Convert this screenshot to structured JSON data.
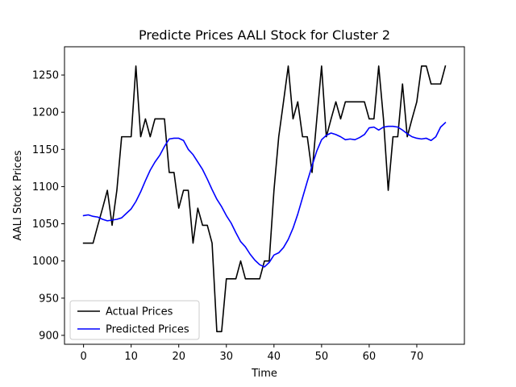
{
  "chart_data": {
    "type": "line",
    "title": "Predicte Prices AALI Stock for Cluster 2",
    "xlabel": "Time",
    "ylabel": "AALI Stock Prices",
    "xlim": [
      -4,
      80
    ],
    "ylim": [
      888,
      1288
    ],
    "xticks": [
      0,
      10,
      20,
      30,
      40,
      50,
      60,
      70
    ],
    "yticks": [
      900,
      950,
      1000,
      1050,
      1100,
      1150,
      1200,
      1250
    ],
    "grid": false,
    "legend_position": "lower-left",
    "x": [
      0,
      1,
      2,
      3,
      4,
      5,
      6,
      7,
      8,
      9,
      10,
      11,
      12,
      13,
      14,
      15,
      16,
      17,
      18,
      19,
      20,
      21,
      22,
      23,
      24,
      25,
      26,
      27,
      28,
      29,
      30,
      31,
      32,
      33,
      34,
      35,
      36,
      37,
      38,
      39,
      40,
      41,
      42,
      43,
      44,
      45,
      46,
      47,
      48,
      49,
      50,
      51,
      52,
      53,
      54,
      55,
      56,
      57,
      58,
      59,
      60,
      61,
      62,
      63,
      64,
      65,
      66,
      67,
      68,
      69,
      70,
      71,
      72,
      73,
      74,
      75,
      76
    ],
    "series": [
      {
        "name": "Actual Prices",
        "color": "#000000",
        "values": [
          1024,
          1024,
          1024,
          1048,
          1071,
          1095,
          1048,
          1095,
          1167,
          1167,
          1167,
          1262,
          1167,
          1191,
          1167,
          1191,
          1191,
          1191,
          1119,
          1119,
          1071,
          1095,
          1095,
          1024,
          1071,
          1048,
          1048,
          1024,
          905,
          905,
          976,
          976,
          976,
          1000,
          976,
          976,
          976,
          976,
          1000,
          1000,
          1095,
          1167,
          1214,
          1262,
          1191,
          1214,
          1167,
          1167,
          1119,
          1191,
          1262,
          1167,
          1191,
          1214,
          1191,
          1214,
          1214,
          1214,
          1214,
          1214,
          1191,
          1191,
          1262,
          1191,
          1095,
          1167,
          1167,
          1238,
          1167,
          1191,
          1214,
          1262,
          1262,
          1238,
          1238,
          1238,
          1262
        ]
      },
      {
        "name": "Predicted Prices",
        "color": "#0000ff",
        "values": [
          1061,
          1062,
          1060,
          1059,
          1056,
          1054,
          1055,
          1056,
          1058,
          1064,
          1070,
          1080,
          1093,
          1108,
          1122,
          1133,
          1142,
          1154,
          1164,
          1165,
          1165,
          1162,
          1150,
          1143,
          1133,
          1123,
          1110,
          1096,
          1083,
          1073,
          1061,
          1051,
          1038,
          1026,
          1019,
          1009,
          1001,
          995,
          992,
          998,
          1008,
          1011,
          1018,
          1029,
          1044,
          1063,
          1085,
          1107,
          1128,
          1148,
          1163,
          1169,
          1172,
          1170,
          1167,
          1163,
          1164,
          1163,
          1166,
          1170,
          1179,
          1180,
          1176,
          1180,
          1181,
          1181,
          1180,
          1176,
          1171,
          1167,
          1165,
          1164,
          1165,
          1162,
          1167,
          1180,
          1186
        ]
      }
    ]
  }
}
